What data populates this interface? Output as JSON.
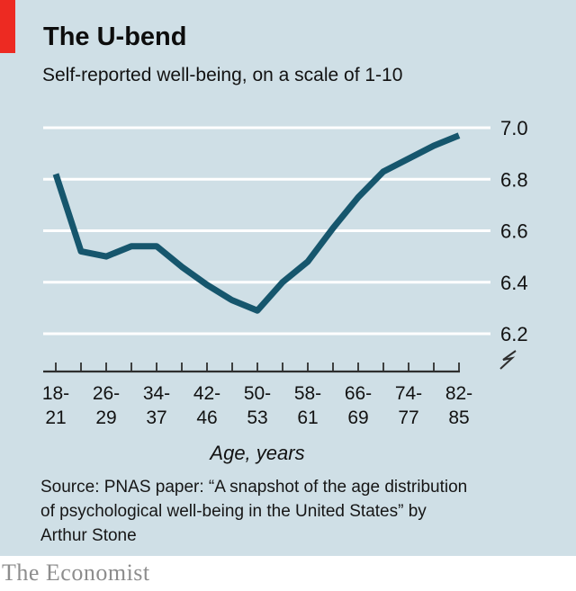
{
  "header": {
    "title": "The U-bend",
    "subtitle": "Self-reported well-being, on a scale of 1-10"
  },
  "source": {
    "lines": [
      "Source: PNAS paper: “A snapshot of the age distribution",
      "of psychological well-being in the United States” by",
      "Arthur Stone"
    ]
  },
  "footer": {
    "logo": "The Economist"
  },
  "colors": {
    "background": "#cfdfe6",
    "red_tab": "#ed2a22",
    "line": "#16566d",
    "gridline": "#ffffff",
    "axis": "#2e2e2e",
    "text": "#121212",
    "footer_text": "#8d8d8d"
  },
  "chart_data": {
    "type": "line",
    "title": "The U-bend",
    "subtitle": "Self-reported well-being, on a scale of 1-10",
    "xlabel": "Age, years",
    "ylabel": "",
    "x_tick_labels": [
      "18-21",
      "26-29",
      "34-37",
      "42-46",
      "50-53",
      "58-61",
      "66-69",
      "74-77",
      "82-85"
    ],
    "bins_note": "17 four-year age bins from 18-21 to 82-85; axis labels shown on every other bin",
    "y_ticks": [
      7.0,
      6.8,
      6.6,
      6.4,
      6.2
    ],
    "ylim": [
      6.2,
      7.0
    ],
    "axis_break": true,
    "grid": "horizontal-white",
    "legend": "none",
    "series": [
      {
        "name": "Self-reported well-being",
        "values": [
          6.82,
          6.52,
          6.5,
          6.54,
          6.54,
          6.46,
          6.39,
          6.33,
          6.29,
          6.4,
          6.48,
          6.61,
          6.73,
          6.83,
          6.88,
          6.93,
          6.97
        ]
      }
    ]
  }
}
